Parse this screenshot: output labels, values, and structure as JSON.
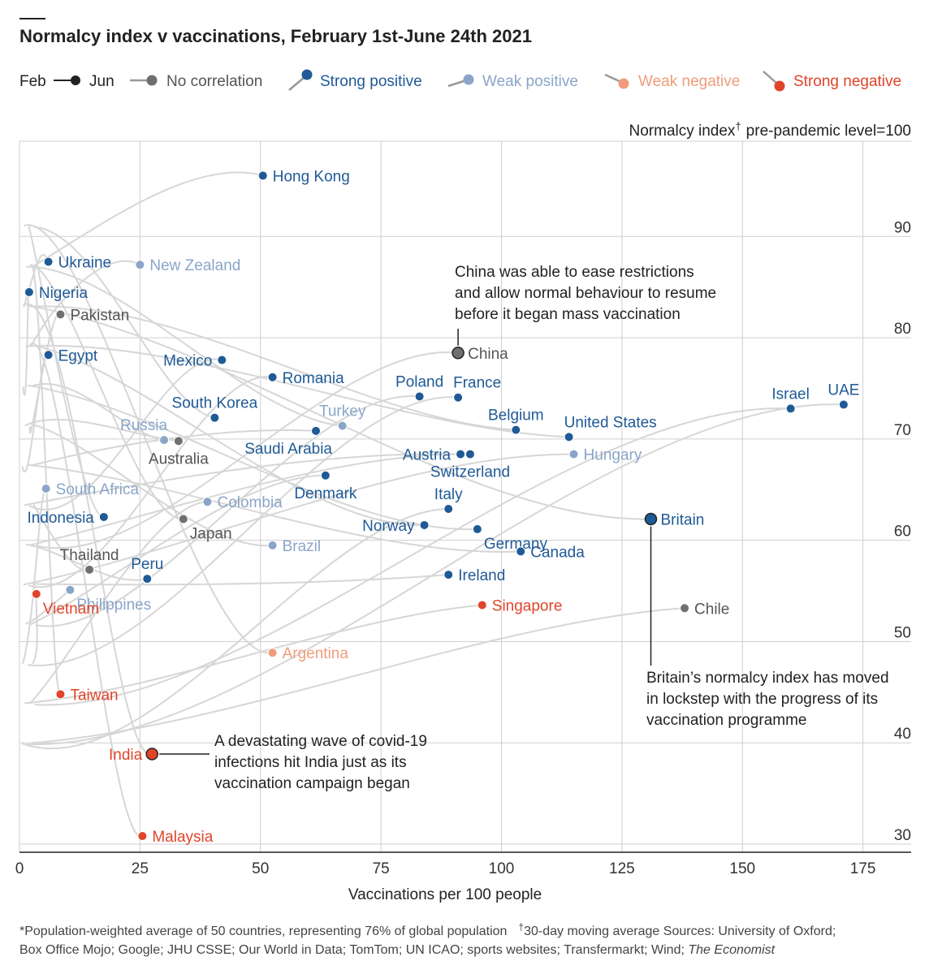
{
  "chart_data": {
    "type": "scatter",
    "title": "Normalcy index v vaccinations, February 1st-June 24th 2021",
    "xlabel": "Vaccinations per 100 people",
    "ylabel": "Normalcy index",
    "ylabel_dagger": "†",
    "ylabel_note": "pre-pandemic level=100",
    "xlim": [
      0,
      185
    ],
    "ylim": [
      29.2,
      99.4
    ],
    "xticks": [
      0,
      25,
      50,
      75,
      100,
      125,
      150,
      175
    ],
    "yticks": [
      30,
      40,
      50,
      60,
      70,
      80,
      90
    ],
    "grid": true,
    "legend": {
      "position": "top",
      "time_from": "Feb",
      "time_to": "Jun",
      "categories": [
        {
          "key": "none",
          "label": "No correlation",
          "color": "#6f6f6f"
        },
        {
          "key": "strong_pos",
          "label": "Strong positive",
          "color": "#1f5a96"
        },
        {
          "key": "weak_pos",
          "label": "Weak positive",
          "color": "#8aa5c8"
        },
        {
          "key": "weak_neg",
          "label": "Weak negative",
          "color": "#f09c7c"
        },
        {
          "key": "strong_neg",
          "label": "Strong negative",
          "color": "#e0442a"
        }
      ]
    },
    "points": [
      {
        "label": "Hong Kong",
        "x": 50.5,
        "y": 96,
        "cat": "strong_pos",
        "anchor": "right"
      },
      {
        "label": "Ukraine",
        "x": 6,
        "y": 87.5,
        "cat": "strong_pos",
        "anchor": "right"
      },
      {
        "label": "New Zealand",
        "x": 25,
        "y": 87.2,
        "cat": "weak_pos",
        "anchor": "right"
      },
      {
        "label": "Nigeria",
        "x": 2,
        "y": 84.5,
        "cat": "strong_pos",
        "anchor": "right"
      },
      {
        "label": "Pakistan",
        "x": 8.5,
        "y": 82.3,
        "cat": "none",
        "anchor": "right"
      },
      {
        "label": "Egypt",
        "x": 6,
        "y": 78.3,
        "cat": "strong_pos",
        "anchor": "right"
      },
      {
        "label": "Mexico",
        "x": 42,
        "y": 77.8,
        "cat": "strong_pos",
        "anchor": "left"
      },
      {
        "label": "China",
        "x": 91,
        "y": 78.5,
        "cat": "none",
        "anchor": "right",
        "big": true
      },
      {
        "label": "Romania",
        "x": 52.5,
        "y": 76.1,
        "cat": "strong_pos",
        "anchor": "right"
      },
      {
        "label": "Poland",
        "x": 83,
        "y": 74.2,
        "cat": "strong_pos",
        "anchor": "above"
      },
      {
        "label": "France",
        "x": 91,
        "y": 74.1,
        "cat": "strong_pos",
        "anchor": "aboveright"
      },
      {
        "label": "Israel",
        "x": 160,
        "y": 73,
        "cat": "strong_pos",
        "anchor": "above"
      },
      {
        "label": "UAE",
        "x": 171,
        "y": 73.4,
        "cat": "strong_pos",
        "anchor": "above"
      },
      {
        "label": "South Korea",
        "x": 40.5,
        "y": 72.1,
        "cat": "strong_pos",
        "anchor": "above"
      },
      {
        "label": "Turkey",
        "x": 67,
        "y": 71.3,
        "cat": "weak_pos",
        "anchor": "above"
      },
      {
        "label": "Belgium",
        "x": 103,
        "y": 70.9,
        "cat": "strong_pos",
        "anchor": "above"
      },
      {
        "label": "United States",
        "x": 114,
        "y": 70.2,
        "cat": "strong_pos",
        "anchor": "aboveright"
      },
      {
        "label": "Russia",
        "x": 30,
        "y": 69.9,
        "cat": "weak_pos",
        "anchor": "aboveleft"
      },
      {
        "label": "Australia",
        "x": 33,
        "y": 69.8,
        "cat": "none",
        "anchor": "below"
      },
      {
        "label": "Saudi Arabia",
        "x": 61.5,
        "y": 70.8,
        "cat": "strong_pos",
        "anchor": "belowleft"
      },
      {
        "label": "Austria",
        "x": 91.5,
        "y": 68.5,
        "cat": "strong_pos",
        "anchor": "left"
      },
      {
        "label": "Switzerland",
        "x": 93.5,
        "y": 68.5,
        "cat": "strong_pos",
        "anchor": "below"
      },
      {
        "label": "Hungary",
        "x": 115,
        "y": 68.5,
        "cat": "weak_pos",
        "anchor": "right"
      },
      {
        "label": "Denmark",
        "x": 63.5,
        "y": 66.4,
        "cat": "strong_pos",
        "anchor": "below"
      },
      {
        "label": "South Africa",
        "x": 5.5,
        "y": 65.1,
        "cat": "weak_pos",
        "anchor": "right"
      },
      {
        "label": "Colombia",
        "x": 39,
        "y": 63.8,
        "cat": "weak_pos",
        "anchor": "right"
      },
      {
        "label": "Italy",
        "x": 89,
        "y": 63.1,
        "cat": "strong_pos",
        "anchor": "above"
      },
      {
        "label": "Indonesia",
        "x": 17.5,
        "y": 62.3,
        "cat": "strong_pos",
        "anchor": "left"
      },
      {
        "label": "Japan",
        "x": 34,
        "y": 62.1,
        "cat": "none",
        "anchor": "belowright"
      },
      {
        "label": "Britain",
        "x": 131,
        "y": 62.1,
        "cat": "strong_pos",
        "anchor": "right",
        "big": true
      },
      {
        "label": "Norway",
        "x": 84,
        "y": 61.5,
        "cat": "strong_pos",
        "anchor": "left"
      },
      {
        "label": "Germany",
        "x": 95,
        "y": 61.1,
        "cat": "strong_pos",
        "anchor": "belowright"
      },
      {
        "label": "Brazil",
        "x": 52.5,
        "y": 59.5,
        "cat": "weak_pos",
        "anchor": "right"
      },
      {
        "label": "Canada",
        "x": 104,
        "y": 58.9,
        "cat": "strong_pos",
        "anchor": "right"
      },
      {
        "label": "Thailand",
        "x": 14.5,
        "y": 57.1,
        "cat": "none",
        "anchor": "above"
      },
      {
        "label": "Peru",
        "x": 26.5,
        "y": 56.2,
        "cat": "strong_pos",
        "anchor": "above"
      },
      {
        "label": "Ireland",
        "x": 89,
        "y": 56.6,
        "cat": "strong_pos",
        "anchor": "right"
      },
      {
        "label": "Philippines",
        "x": 10.5,
        "y": 55.1,
        "cat": "weak_pos",
        "anchor": "belowright"
      },
      {
        "label": "Vietnam",
        "x": 3.5,
        "y": 54.7,
        "cat": "strong_neg",
        "anchor": "belowright"
      },
      {
        "label": "Singapore",
        "x": 96,
        "y": 53.6,
        "cat": "strong_neg",
        "anchor": "right"
      },
      {
        "label": "Chile",
        "x": 138,
        "y": 53.3,
        "cat": "none",
        "anchor": "right"
      },
      {
        "label": "Argentina",
        "x": 52.5,
        "y": 48.9,
        "cat": "weak_neg",
        "anchor": "right"
      },
      {
        "label": "Taiwan",
        "x": 8.5,
        "y": 44.8,
        "cat": "strong_neg",
        "anchor": "right"
      },
      {
        "label": "India",
        "x": 27.5,
        "y": 38.9,
        "cat": "strong_neg",
        "anchor": "left",
        "big": true
      },
      {
        "label": "Malaysia",
        "x": 25.5,
        "y": 30.8,
        "cat": "strong_neg",
        "anchor": "right"
      }
    ],
    "annotations": [
      {
        "lines": [
          "China was able to ease restrictions",
          "and allow normal behaviour to resume",
          "before it began mass vaccination"
        ]
      },
      {
        "lines": [
          "Britain’s normalcy index has moved",
          "in lockstep with the progress of its",
          "vaccination programme"
        ]
      },
      {
        "lines": [
          "A devastating wave of covid-19",
          "infections hit India just as its",
          "vaccination campaign began"
        ]
      }
    ],
    "footnote": {
      "line1": "*Population-weighted average of 50 countries, representing 76% of global population",
      "line1_dagger": "†",
      "line1_b": "30-day moving average   Sources: University of Oxford;",
      "line2": "Box Office Mojo; Google; JHU CSSE; Our World in Data; TomTom; UN ICAO; sports websites; Transfermarkt; Wind;",
      "line2_italic": "The Economist"
    }
  }
}
